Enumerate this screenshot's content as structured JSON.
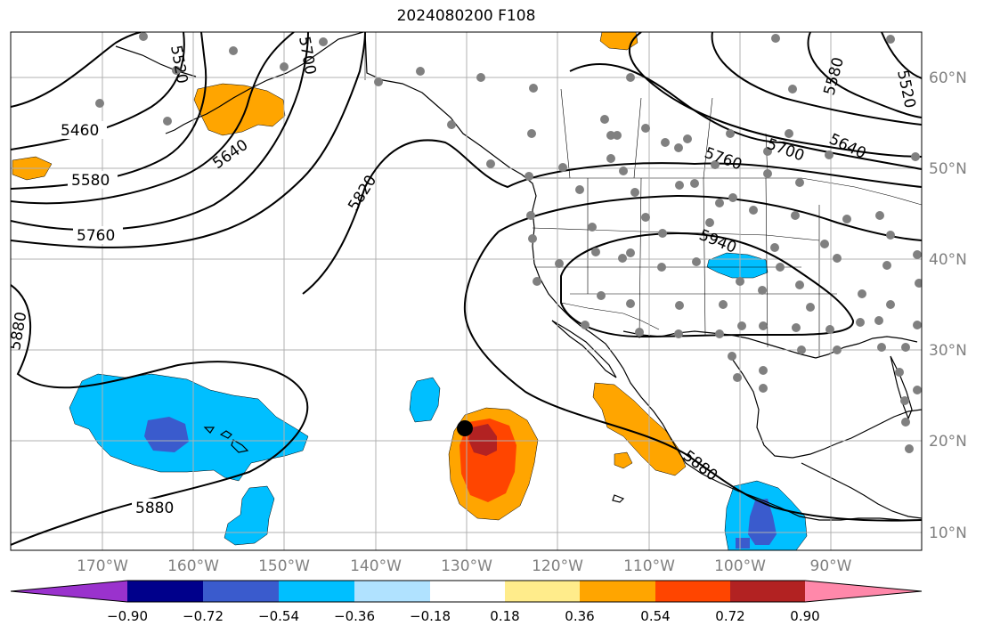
{
  "title": "2024080200 F108",
  "lon_labels": [
    "170°W",
    "160°W",
    "150°W",
    "140°W",
    "130°W",
    "120°W",
    "110°W",
    "100°W",
    "90°W"
  ],
  "lat_labels": [
    "60°N",
    "50°N",
    "40°N",
    "30°N",
    "20°N",
    "10°N"
  ],
  "contour_labels": [
    "5460",
    "5520",
    "5580",
    "5640",
    "5700",
    "5760",
    "5820",
    "5880",
    "5940"
  ],
  "colorbar": {
    "ticks": [
      "−0.90",
      "−0.72",
      "−0.54",
      "−0.36",
      "−0.18",
      "0.18",
      "0.36",
      "0.54",
      "0.72",
      "0.90"
    ],
    "colors": [
      "#9a32cd",
      "#00008b",
      "#3a5bcd",
      "#00bfff",
      "#b0e2ff",
      "#ffffff",
      "#ffec8b",
      "#ffa500",
      "#ff4500",
      "#b22222",
      "#ff88aa"
    ]
  },
  "colors": {
    "coastline": "#000000",
    "grid": "#b0b0b0",
    "station_dot": "#808080",
    "axis_label": "#808080"
  },
  "marker": {
    "color": "#000000",
    "description": "black dot"
  }
}
